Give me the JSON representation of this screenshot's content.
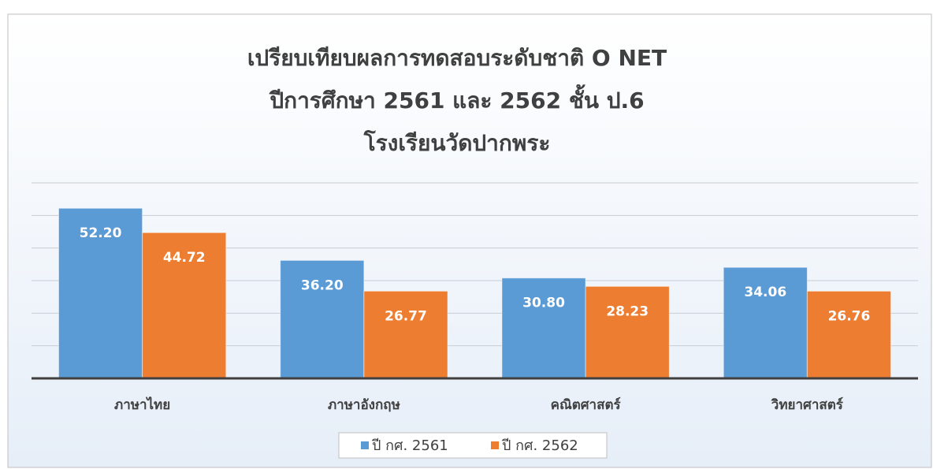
{
  "chart_data": {
    "type": "bar",
    "title": [
      "เปรียบเทียบผลการทดสอบระดับชาติ O NET",
      "ปีการศึกษา 2561 และ 2562 ชั้น ป.6",
      "โรงเรียนวัดปากพระ"
    ],
    "categories": [
      "ภาษาไทย",
      "ภาษาอังกฤษ",
      "คณิตศาสตร์",
      "วิทยาศาสตร์"
    ],
    "series": [
      {
        "name": "ปี กศ. 2561",
        "color": "#5b9bd5",
        "values": [
          52.2,
          36.2,
          30.8,
          34.06
        ],
        "value_labels": [
          "52.20",
          "36.20",
          "30.80",
          "34.06"
        ]
      },
      {
        "name": "ปี กศ. 2562",
        "color": "#ed7d31",
        "values": [
          44.72,
          26.77,
          28.23,
          26.76
        ],
        "value_labels": [
          "44.72",
          "26.77",
          "28.23",
          "26.76"
        ]
      }
    ],
    "ylim": [
      0,
      60
    ],
    "yticks": [
      0,
      10,
      20,
      30,
      40,
      50,
      60
    ],
    "grid": true,
    "legend": "bottom"
  }
}
